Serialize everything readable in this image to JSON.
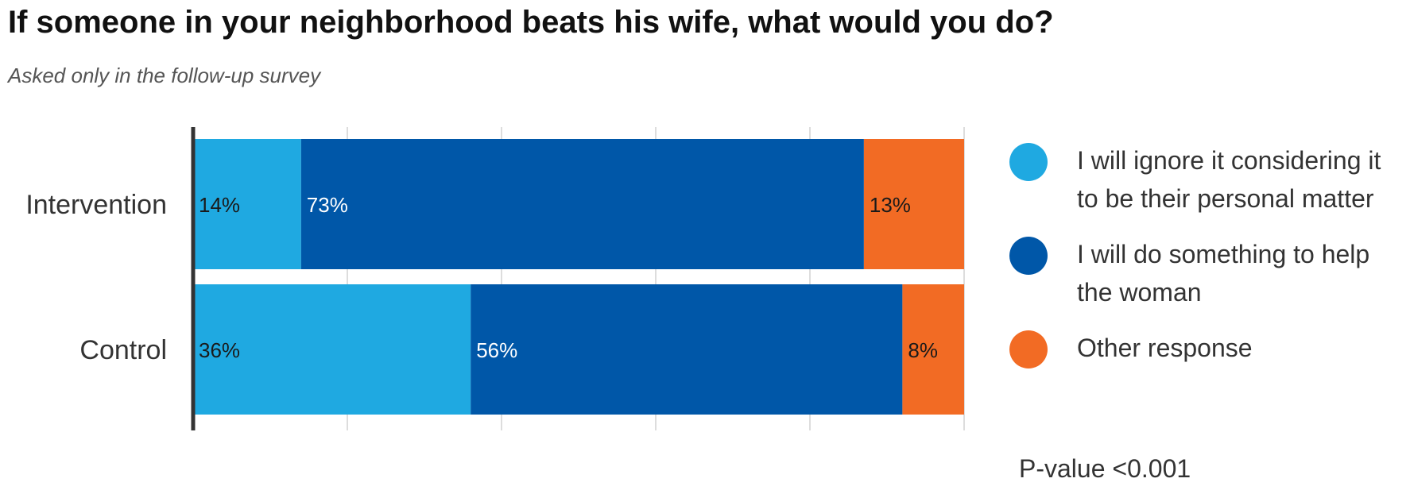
{
  "chart_data": {
    "type": "bar",
    "orientation": "horizontal",
    "stacked": true,
    "normalized_percent": true,
    "title": "If someone in your neighborhood beats his wife, what would you do?",
    "subtitle": "Asked only in the follow-up survey",
    "categories": [
      "Intervention",
      "Control"
    ],
    "series": [
      {
        "name": "I will ignore it considering it to be their personal matter",
        "values": [
          14,
          36
        ],
        "labels": [
          "14%",
          "36%"
        ],
        "color": "#1fa9e1"
      },
      {
        "name": "I will do something to help the woman",
        "values": [
          73,
          56
        ],
        "labels": [
          "73%",
          "56%"
        ],
        "color": "#0057a8"
      },
      {
        "name": "Other response",
        "values": [
          13,
          8
        ],
        "labels": [
          "13%",
          "8%"
        ],
        "color": "#f26b24"
      }
    ],
    "xlim": [
      0,
      100
    ],
    "grid": true,
    "legend_position": "right",
    "annotation": "P-value <0.001"
  }
}
